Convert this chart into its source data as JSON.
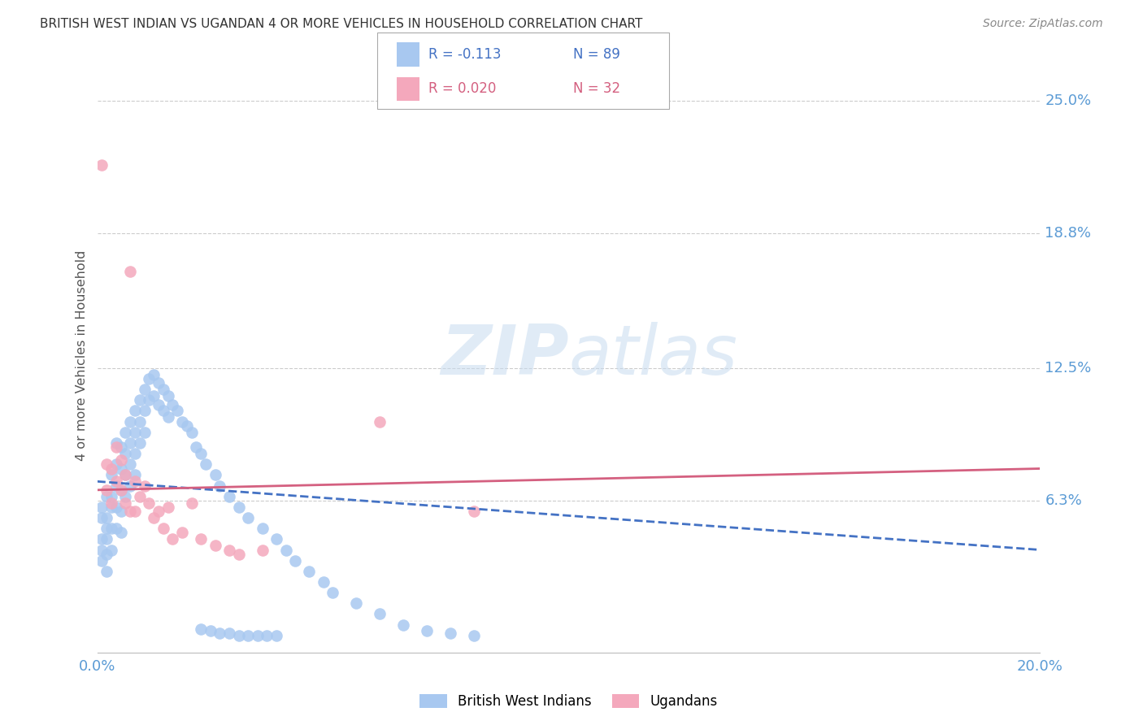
{
  "title": "BRITISH WEST INDIAN VS UGANDAN 4 OR MORE VEHICLES IN HOUSEHOLD CORRELATION CHART",
  "source": "Source: ZipAtlas.com",
  "ylabel": "4 or more Vehicles in Household",
  "xlim": [
    0.0,
    0.2
  ],
  "ylim": [
    -0.008,
    0.27
  ],
  "y_tick_right_labels": [
    "25.0%",
    "18.8%",
    "12.5%",
    "6.3%"
  ],
  "y_tick_right_values": [
    0.25,
    0.188,
    0.125,
    0.063
  ],
  "watermark_zip": "ZIP",
  "watermark_atlas": "atlas",
  "legend_blue_r": "R = -0.113",
  "legend_blue_n": "N = 89",
  "legend_pink_r": "R = 0.020",
  "legend_pink_n": "N = 32",
  "legend_blue_label": "British West Indians",
  "legend_pink_label": "Ugandans",
  "blue_color": "#A8C8F0",
  "pink_color": "#F4A8BC",
  "blue_line_color": "#4472C4",
  "pink_line_color": "#D46080",
  "title_color": "#333333",
  "source_color": "#888888",
  "axis_label_color": "#5B9BD5",
  "grid_color": "#CCCCCC",
  "blue_scatter_x": [
    0.001,
    0.001,
    0.001,
    0.001,
    0.001,
    0.002,
    0.002,
    0.002,
    0.002,
    0.002,
    0.002,
    0.003,
    0.003,
    0.003,
    0.003,
    0.003,
    0.004,
    0.004,
    0.004,
    0.004,
    0.004,
    0.005,
    0.005,
    0.005,
    0.005,
    0.005,
    0.006,
    0.006,
    0.006,
    0.006,
    0.007,
    0.007,
    0.007,
    0.007,
    0.008,
    0.008,
    0.008,
    0.008,
    0.009,
    0.009,
    0.009,
    0.01,
    0.01,
    0.01,
    0.011,
    0.011,
    0.012,
    0.012,
    0.013,
    0.013,
    0.014,
    0.014,
    0.015,
    0.015,
    0.016,
    0.017,
    0.018,
    0.019,
    0.02,
    0.021,
    0.022,
    0.023,
    0.025,
    0.026,
    0.028,
    0.03,
    0.032,
    0.035,
    0.038,
    0.04,
    0.042,
    0.045,
    0.048,
    0.05,
    0.055,
    0.06,
    0.065,
    0.07,
    0.075,
    0.08,
    0.022,
    0.024,
    0.026,
    0.028,
    0.03,
    0.032,
    0.034,
    0.036,
    0.038
  ],
  "blue_scatter_y": [
    0.06,
    0.045,
    0.055,
    0.04,
    0.035,
    0.065,
    0.055,
    0.05,
    0.045,
    0.038,
    0.03,
    0.075,
    0.065,
    0.06,
    0.05,
    0.04,
    0.09,
    0.08,
    0.07,
    0.06,
    0.05,
    0.088,
    0.078,
    0.068,
    0.058,
    0.048,
    0.095,
    0.085,
    0.075,
    0.065,
    0.1,
    0.09,
    0.08,
    0.07,
    0.105,
    0.095,
    0.085,
    0.075,
    0.11,
    0.1,
    0.09,
    0.115,
    0.105,
    0.095,
    0.12,
    0.11,
    0.122,
    0.112,
    0.118,
    0.108,
    0.115,
    0.105,
    0.112,
    0.102,
    0.108,
    0.105,
    0.1,
    0.098,
    0.095,
    0.088,
    0.085,
    0.08,
    0.075,
    0.07,
    0.065,
    0.06,
    0.055,
    0.05,
    0.045,
    0.04,
    0.035,
    0.03,
    0.025,
    0.02,
    0.015,
    0.01,
    0.005,
    0.002,
    0.001,
    0.0,
    0.003,
    0.002,
    0.001,
    0.001,
    0.0,
    0.0,
    0.0,
    0.0,
    0.0
  ],
  "pink_scatter_x": [
    0.001,
    0.002,
    0.002,
    0.003,
    0.003,
    0.004,
    0.004,
    0.005,
    0.005,
    0.006,
    0.006,
    0.007,
    0.007,
    0.008,
    0.008,
    0.009,
    0.01,
    0.011,
    0.012,
    0.013,
    0.014,
    0.015,
    0.016,
    0.018,
    0.02,
    0.022,
    0.025,
    0.028,
    0.03,
    0.035,
    0.06,
    0.08
  ],
  "pink_scatter_y": [
    0.22,
    0.08,
    0.068,
    0.078,
    0.062,
    0.088,
    0.072,
    0.082,
    0.068,
    0.075,
    0.062,
    0.17,
    0.058,
    0.072,
    0.058,
    0.065,
    0.07,
    0.062,
    0.055,
    0.058,
    0.05,
    0.06,
    0.045,
    0.048,
    0.062,
    0.045,
    0.042,
    0.04,
    0.038,
    0.04,
    0.1,
    0.058
  ],
  "blue_trend_x": [
    0.0,
    0.2
  ],
  "blue_trend_y": [
    0.072,
    0.04
  ],
  "pink_trend_x": [
    0.0,
    0.2
  ],
  "pink_trend_y": [
    0.068,
    0.078
  ]
}
